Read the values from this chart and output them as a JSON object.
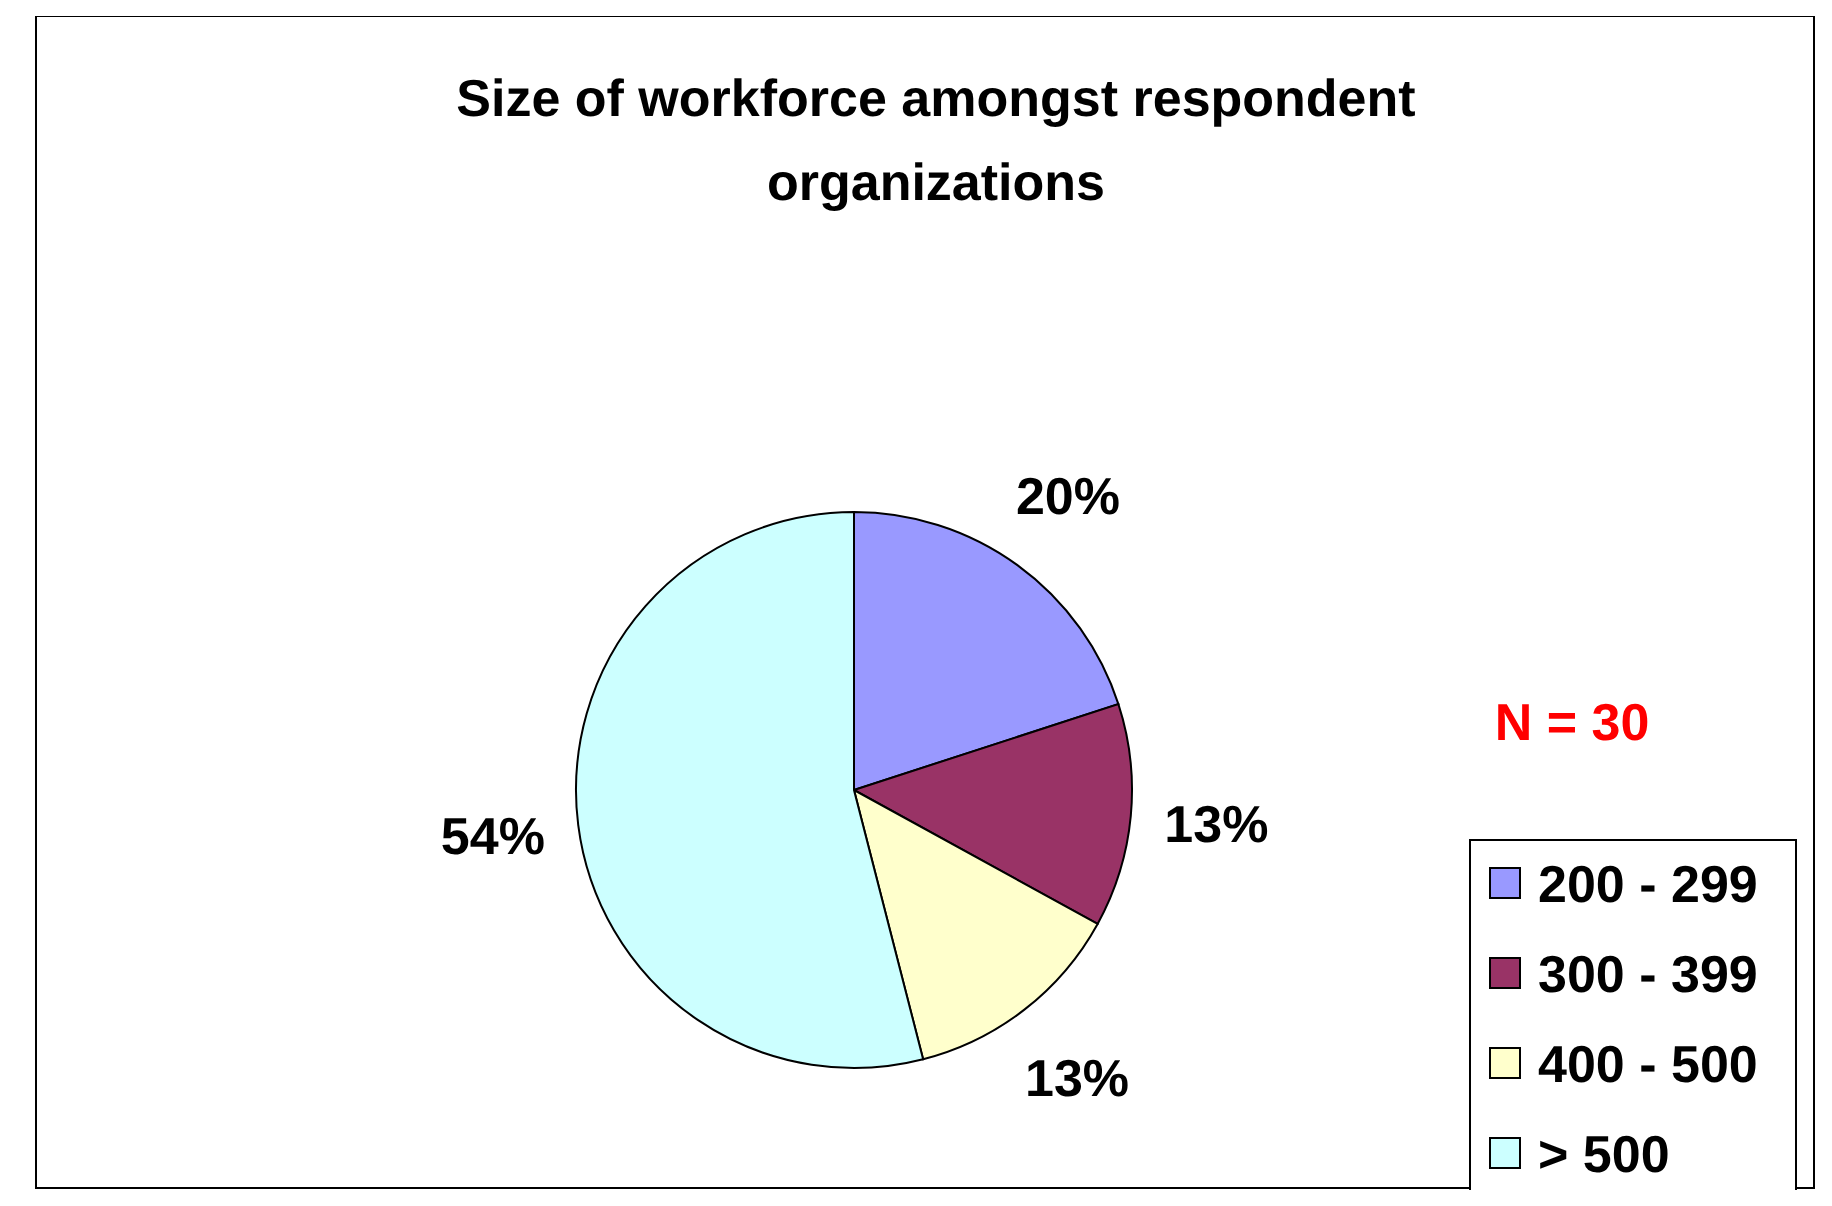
{
  "chart_data": {
    "type": "pie",
    "title": "Size of workforce amongst respondent organizations",
    "categories": [
      "200 - 299",
      "300 - 399",
      "400 - 500",
      "> 500"
    ],
    "values": [
      20,
      13,
      13,
      54
    ],
    "colors": [
      "#9999ff",
      "#993366",
      "#ffffcc",
      "#ccffff"
    ],
    "value_labels": [
      "20%",
      "13%",
      "13%",
      "54%"
    ],
    "annotations": [
      "N = 30"
    ],
    "legend": "right"
  }
}
